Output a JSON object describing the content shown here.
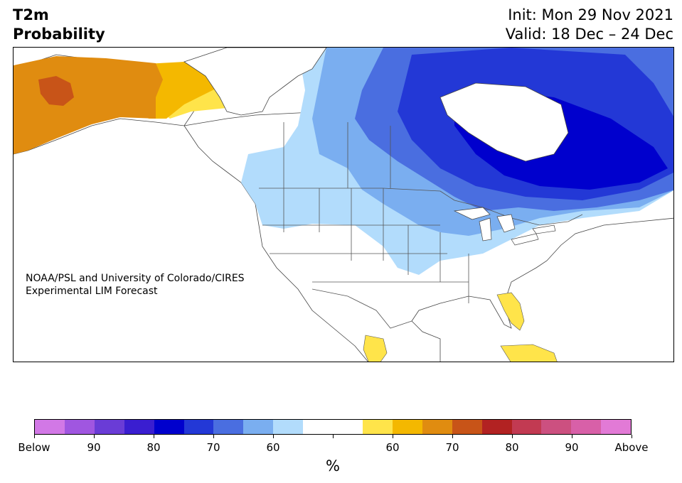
{
  "title": {
    "line1": "T2m",
    "line2": "Probability"
  },
  "forecast": {
    "init": "Init: Mon 29 Nov 2021",
    "valid": "Valid: 18 Dec – 24 Dec"
  },
  "credit": {
    "line1": "NOAA/PSL and University of Colorado/CIRES",
    "line2": "Experimental LIM Forecast"
  },
  "colorbar": {
    "colors": [
      "#d278e6",
      "#a056e0",
      "#6a3cd6",
      "#3a1ed0",
      "#0000cd",
      "#2338d6",
      "#4a6ee0",
      "#7aaef0",
      "#b2dcfc",
      "#ffffff",
      "#ffffff",
      "#ffe44a",
      "#f4b800",
      "#e08c10",
      "#c85418",
      "#b22222",
      "#c23a52",
      "#cc5080",
      "#d860a8",
      "#e27ad6"
    ],
    "tick_labels": [
      "Below",
      "90",
      "80",
      "70",
      "60",
      "",
      "60",
      "70",
      "80",
      "90",
      "Above"
    ],
    "unit": "%"
  },
  "map_colors": {
    "warm_60": "#ffe44a",
    "warm_70": "#f4b800",
    "warm_80": "#e08c10",
    "warm_90": "#c85418",
    "cold_60": "#b2dcfc",
    "cold_70": "#7aaef0",
    "cold_80": "#4a6ee0",
    "cold_90": "#2338d6",
    "cold_100": "#0000cd"
  }
}
